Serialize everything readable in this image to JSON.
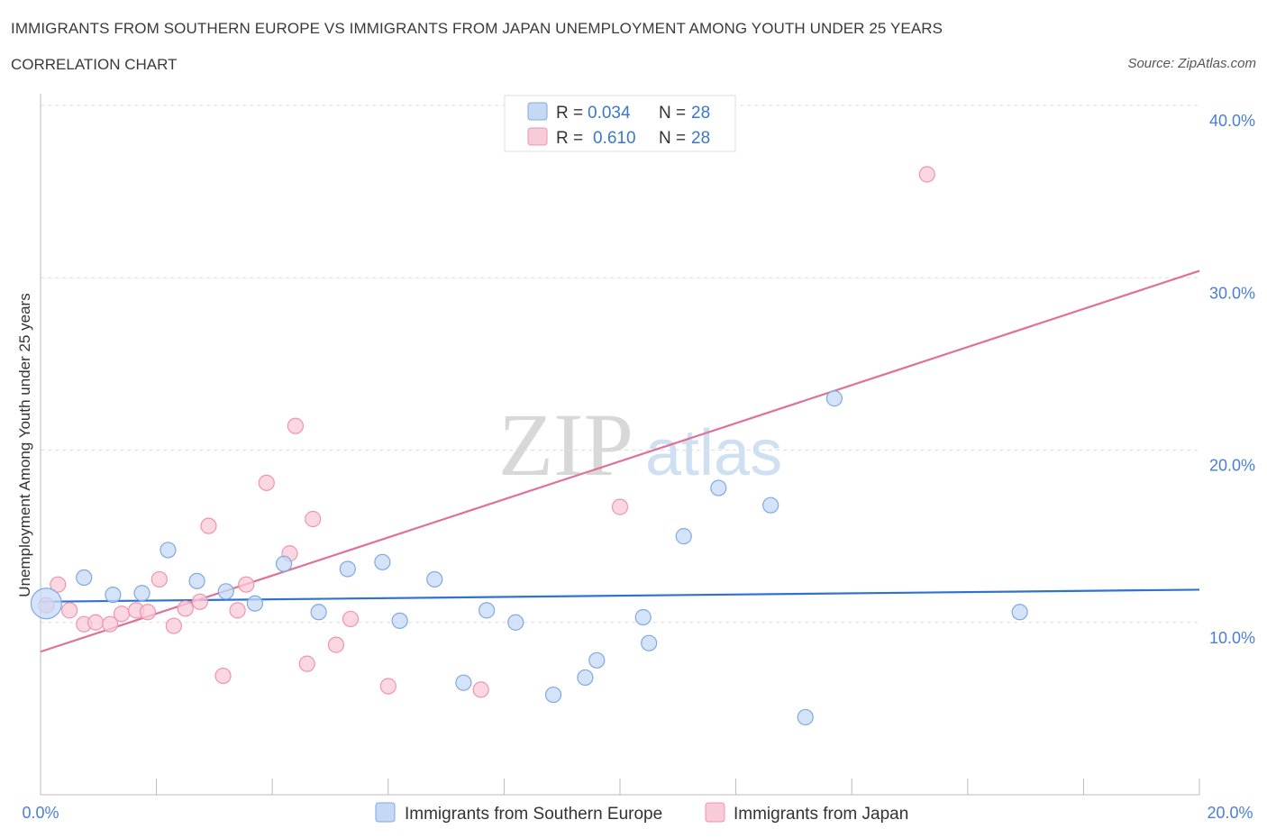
{
  "header": {
    "title": "IMMIGRANTS FROM SOUTHERN EUROPE VS IMMIGRANTS FROM JAPAN UNEMPLOYMENT AMONG YOUTH UNDER 25 YEARS",
    "subtitle": "CORRELATION CHART",
    "source": "Source: ZipAtlas.com"
  },
  "watermark": {
    "zip": "ZIP",
    "atlas": "atlas"
  },
  "colors": {
    "blue_fill": "#c5d9f5",
    "blue_stroke": "#7fa9e0",
    "blue_line": "#2f72d0",
    "pink_fill": "#f9cad8",
    "pink_stroke": "#ee94b0",
    "pink_line": "#e0709a",
    "tick_text": "#4a7fd4",
    "grid": "#dddddd"
  },
  "legend_top": {
    "rows": [
      {
        "r_label": "R =",
        "r_value": "0.034",
        "n_label": "N =",
        "n_value": "28"
      },
      {
        "r_label": "R =",
        "r_value": "0.610",
        "n_label": "N =",
        "n_value": "28"
      }
    ]
  },
  "chart_data": {
    "type": "scatter",
    "title": "IMMIGRANTS FROM SOUTHERN EUROPE VS IMMIGRANTS FROM JAPAN UNEMPLOYMENT AMONG YOUTH UNDER 25 YEARS",
    "xlabel": "",
    "ylabel": "Unemployment Among Youth under 25 years",
    "xlim": [
      0,
      20
    ],
    "ylim": [
      0,
      40
    ],
    "x_tick_labels": [
      "0.0%",
      "20.0%"
    ],
    "y_ticks": [
      10,
      20,
      30,
      40
    ],
    "y_tick_labels": [
      "10.0%",
      "20.0%",
      "30.0%",
      "40.0%"
    ],
    "grid": true,
    "series": [
      {
        "name": "Immigrants from Southern Europe",
        "color": "#7fa9e0",
        "r": 0.034,
        "n": 28,
        "trend": {
          "x": [
            0,
            20
          ],
          "y": [
            11.2,
            11.9
          ]
        },
        "points": [
          {
            "x": 0.1,
            "y": 11.1,
            "big": true
          },
          {
            "x": 0.75,
            "y": 12.6
          },
          {
            "x": 1.25,
            "y": 11.6
          },
          {
            "x": 1.75,
            "y": 11.7
          },
          {
            "x": 2.2,
            "y": 14.2
          },
          {
            "x": 2.7,
            "y": 12.4
          },
          {
            "x": 3.2,
            "y": 11.8
          },
          {
            "x": 3.7,
            "y": 11.1
          },
          {
            "x": 4.2,
            "y": 13.4
          },
          {
            "x": 4.8,
            "y": 10.6
          },
          {
            "x": 5.3,
            "y": 13.1
          },
          {
            "x": 5.9,
            "y": 13.5
          },
          {
            "x": 6.2,
            "y": 10.1
          },
          {
            "x": 6.8,
            "y": 12.5
          },
          {
            "x": 7.3,
            "y": 6.5
          },
          {
            "x": 7.7,
            "y": 10.7
          },
          {
            "x": 8.2,
            "y": 10.0
          },
          {
            "x": 8.85,
            "y": 5.8
          },
          {
            "x": 9.4,
            "y": 6.8
          },
          {
            "x": 9.6,
            "y": 7.8
          },
          {
            "x": 10.4,
            "y": 10.3
          },
          {
            "x": 10.5,
            "y": 8.8
          },
          {
            "x": 11.1,
            "y": 15.0
          },
          {
            "x": 11.7,
            "y": 17.8
          },
          {
            "x": 12.6,
            "y": 16.8
          },
          {
            "x": 13.2,
            "y": 4.5
          },
          {
            "x": 13.7,
            "y": 23.0
          },
          {
            "x": 16.9,
            "y": 10.6
          }
        ]
      },
      {
        "name": "Immigrants from Japan",
        "color": "#ee94b0",
        "r": 0.61,
        "n": 28,
        "trend": {
          "x": [
            0,
            20
          ],
          "y": [
            8.3,
            30.4
          ]
        },
        "points": [
          {
            "x": 0.1,
            "y": 11.0
          },
          {
            "x": 0.3,
            "y": 12.2
          },
          {
            "x": 0.5,
            "y": 10.7
          },
          {
            "x": 0.75,
            "y": 9.9
          },
          {
            "x": 0.95,
            "y": 10.0
          },
          {
            "x": 1.2,
            "y": 9.9
          },
          {
            "x": 1.4,
            "y": 10.5
          },
          {
            "x": 1.65,
            "y": 10.7
          },
          {
            "x": 1.85,
            "y": 10.6
          },
          {
            "x": 2.05,
            "y": 12.5
          },
          {
            "x": 2.3,
            "y": 9.8
          },
          {
            "x": 2.5,
            "y": 10.8
          },
          {
            "x": 2.75,
            "y": 11.2
          },
          {
            "x": 2.9,
            "y": 15.6
          },
          {
            "x": 3.15,
            "y": 6.9
          },
          {
            "x": 3.4,
            "y": 10.7
          },
          {
            "x": 3.55,
            "y": 12.2
          },
          {
            "x": 3.9,
            "y": 18.1
          },
          {
            "x": 4.3,
            "y": 14.0
          },
          {
            "x": 4.4,
            "y": 21.4
          },
          {
            "x": 4.6,
            "y": 7.6
          },
          {
            "x": 4.7,
            "y": 16.0
          },
          {
            "x": 5.1,
            "y": 8.7
          },
          {
            "x": 5.35,
            "y": 10.2
          },
          {
            "x": 6.0,
            "y": 6.3
          },
          {
            "x": 7.6,
            "y": 6.1
          },
          {
            "x": 10.0,
            "y": 16.7
          },
          {
            "x": 15.3,
            "y": 36.0
          }
        ]
      }
    ]
  }
}
